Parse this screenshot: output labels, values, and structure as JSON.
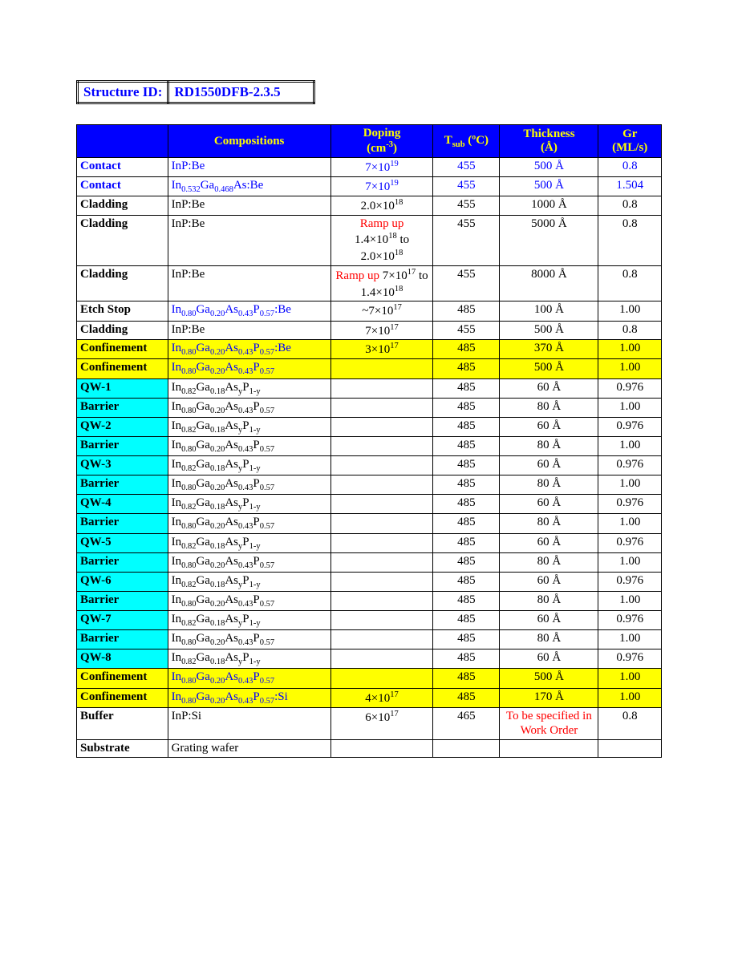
{
  "structure_id_label": "Structure ID:",
  "structure_id_value": "RD1550DFB-2.3.5",
  "headers": {
    "layer": "",
    "compositions_label": "Compositions",
    "doping_label": "Doping",
    "doping_unit": "(cm",
    "doping_unit_sup": "-3",
    "doping_unit_close": ")",
    "tsub_label": "T",
    "tsub_sub": "sub",
    "tsub_unit": " (ºC)",
    "thickness_label": "Thickness",
    "thickness_unit": "(Å)",
    "gr_label": "Gr",
    "gr_unit": "(ML/s)"
  },
  "rows": [
    {
      "layer": "Contact",
      "layer_blue": true,
      "comp": "InP:Be",
      "comp_blue": true,
      "doping_html": "7×10<sup>19</sup>",
      "doping_blue": true,
      "tsub": "455",
      "tsub_blue": true,
      "thick": "500 Å",
      "thick_blue": true,
      "gr": "0.8",
      "gr_blue": true
    },
    {
      "layer": "Contact",
      "layer_blue": true,
      "comp": "In<sub>0.532</sub>Ga<sub>0.468</sub>As:Be",
      "comp_blue": true,
      "doping_html": "7×10<sup>19</sup>",
      "doping_blue": true,
      "tsub": "455",
      "tsub_blue": true,
      "thick": "500 Å",
      "thick_blue": true,
      "gr": "1.504",
      "gr_blue": true
    },
    {
      "layer": "Cladding",
      "comp": "InP:Be",
      "doping_html": "2.0×10<sup>18</sup>",
      "tsub": "455",
      "thick": "1000 Å",
      "gr": "0.8"
    },
    {
      "layer": "Cladding",
      "comp": "InP:Be",
      "doping_html": "<span class=\"red-text\">Ramp up</span><br>1.4×10<sup>18</sup> to 2.0×10<sup>18</sup>",
      "tsub": "455",
      "thick": "5000 Å",
      "gr": "0.8"
    },
    {
      "layer": "Cladding",
      "comp": "InP:Be",
      "doping_html": "<span class=\"red-text\">Ramp up</span> 7×10<sup>17</sup> to 1.4×10<sup>18</sup>",
      "tsub": "455",
      "thick": "8000 Å",
      "gr": "0.8"
    },
    {
      "layer": "Etch Stop",
      "comp": "In<sub>0.80</sub>Ga<sub>0.20</sub>As<sub>0.43</sub>P<sub>0.57</sub>:Be",
      "comp_blue": true,
      "doping_html": "~7×10<sup>17</sup>",
      "tsub": "485",
      "thick": "100 Å",
      "gr": "1.00"
    },
    {
      "layer": "Cladding",
      "comp": "InP:Be",
      "doping_html": "7×10<sup>17</sup>",
      "tsub": "455",
      "thick": "500 Å",
      "gr": "0.8"
    },
    {
      "layer": "Confinement",
      "hl": "yellow",
      "comp": "In<sub>0.80</sub>Ga<sub>0.20</sub>As<sub>0.43</sub>P<sub>0.57</sub>:Be",
      "comp_blue": true,
      "doping_html": "3×10<sup>17</sup>",
      "tsub": "485",
      "thick": "370 Å",
      "gr": "1.00"
    },
    {
      "layer": "Confinement",
      "hl": "yellow",
      "comp": "In<sub>0.80</sub>Ga<sub>0.20</sub>As<sub>0.43</sub>P<sub>0.57</sub>",
      "comp_blue": true,
      "doping_html": "",
      "tsub": "485",
      "thick": "500 Å",
      "gr": "1.00"
    },
    {
      "layer": "QW-1",
      "layer_hl": "cyan",
      "comp": "In<sub>0.82</sub>Ga<sub>0.18</sub>As<sub>y</sub>P<sub>1-y</sub>",
      "doping_html": "",
      "tsub": "485",
      "thick": "60 Å",
      "gr": "0.976"
    },
    {
      "layer": "Barrier",
      "layer_hl": "cyan",
      "comp": "In<sub>0.80</sub>Ga<sub>0.20</sub>As<sub>0.43</sub>P<sub>0.57</sub>",
      "doping_html": "",
      "tsub": "485",
      "thick": "80 Å",
      "gr": "1.00"
    },
    {
      "layer": "QW-2",
      "layer_hl": "cyan",
      "comp": "In<sub>0.82</sub>Ga<sub>0.18</sub>As<sub>y</sub>P<sub>1-y</sub>",
      "doping_html": "",
      "tsub": "485",
      "thick": "60 Å",
      "gr": "0.976"
    },
    {
      "layer": "Barrier",
      "layer_hl": "cyan",
      "comp": "In<sub>0.80</sub>Ga<sub>0.20</sub>As<sub>0.43</sub>P<sub>0.57</sub>",
      "doping_html": "",
      "tsub": "485",
      "thick": "80 Å",
      "gr": "1.00"
    },
    {
      "layer": "QW-3",
      "layer_hl": "cyan",
      "comp": "In<sub>0.82</sub>Ga<sub>0.18</sub>As<sub>y</sub>P<sub>1-y</sub>",
      "doping_html": "",
      "tsub": "485",
      "thick": "60 Å",
      "gr": "0.976"
    },
    {
      "layer": "Barrier",
      "layer_hl": "cyan",
      "comp": "In<sub>0.80</sub>Ga<sub>0.20</sub>As<sub>0.43</sub>P<sub>0.57</sub>",
      "doping_html": "",
      "tsub": "485",
      "thick": "80 Å",
      "gr": "1.00"
    },
    {
      "layer": "QW-4",
      "layer_hl": "cyan",
      "comp": "In<sub>0.82</sub>Ga<sub>0.18</sub>As<sub>y</sub>P<sub>1-y</sub>",
      "doping_html": "",
      "tsub": "485",
      "thick": "60 Å",
      "gr": "0.976"
    },
    {
      "layer": "Barrier",
      "layer_hl": "cyan",
      "comp": "In<sub>0.80</sub>Ga<sub>0.20</sub>As<sub>0.43</sub>P<sub>0.57</sub>",
      "doping_html": "",
      "tsub": "485",
      "thick": "80 Å",
      "gr": "1.00"
    },
    {
      "layer": "QW-5",
      "layer_hl": "cyan",
      "comp": "In<sub>0.82</sub>Ga<sub>0.18</sub>As<sub>y</sub>P<sub>1-y</sub>",
      "doping_html": "",
      "tsub": "485",
      "thick": "60 Å",
      "gr": "0.976"
    },
    {
      "layer": "Barrier",
      "layer_hl": "cyan",
      "comp": "In<sub>0.80</sub>Ga<sub>0.20</sub>As<sub>0.43</sub>P<sub>0.57</sub>",
      "doping_html": "",
      "tsub": "485",
      "thick": "80 Å",
      "gr": "1.00"
    },
    {
      "layer": "QW-6",
      "layer_hl": "cyan",
      "comp": "In<sub>0.82</sub>Ga<sub>0.18</sub>As<sub>y</sub>P<sub>1-y</sub>",
      "doping_html": "",
      "tsub": "485",
      "thick": "60 Å",
      "gr": "0.976"
    },
    {
      "layer": "Barrier",
      "layer_hl": "cyan",
      "comp": "In<sub>0.80</sub>Ga<sub>0.20</sub>As<sub>0.43</sub>P<sub>0.57</sub>",
      "doping_html": "",
      "tsub": "485",
      "thick": "80 Å",
      "gr": "1.00"
    },
    {
      "layer": "QW-7",
      "layer_hl": "cyan",
      "comp": "In<sub>0.82</sub>Ga<sub>0.18</sub>As<sub>y</sub>P<sub>1-y</sub>",
      "doping_html": "",
      "tsub": "485",
      "thick": "60 Å",
      "gr": "0.976"
    },
    {
      "layer": "Barrier",
      "layer_hl": "cyan",
      "comp": "In<sub>0.80</sub>Ga<sub>0.20</sub>As<sub>0.43</sub>P<sub>0.57</sub>",
      "doping_html": "",
      "tsub": "485",
      "thick": "80 Å",
      "gr": "1.00"
    },
    {
      "layer": "QW-8",
      "layer_hl": "cyan",
      "comp": "In<sub>0.82</sub>Ga<sub>0.18</sub>As<sub>y</sub>P<sub>1-y</sub>",
      "doping_html": "",
      "tsub": "485",
      "thick": "60 Å",
      "gr": "0.976"
    },
    {
      "layer": "Confinement",
      "hl": "yellow",
      "comp": "In<sub>0.80</sub>Ga<sub>0.20</sub>As<sub>0.43</sub>P<sub>0.57</sub>",
      "comp_blue": true,
      "doping_html": "",
      "tsub": "485",
      "thick": "500 Å",
      "gr": "1.00"
    },
    {
      "layer": "Confinement",
      "hl": "yellow",
      "comp": "In<sub>0.80</sub>Ga<sub>0.20</sub>As<sub>0.43</sub>P<sub>0.57</sub>:Si",
      "comp_blue": true,
      "doping_html": "4×10<sup>17</sup>",
      "tsub": "485",
      "thick": "170 Å",
      "gr": "1.00"
    },
    {
      "layer": "Buffer",
      "comp": "InP:Si",
      "doping_html": "6×10<sup>17</sup>",
      "tsub": "465",
      "thick": "To be specified in Work Order",
      "thick_red": true,
      "gr": "0.8"
    },
    {
      "layer": "Substrate",
      "comp": "Grating wafer",
      "doping_html": "",
      "tsub": "",
      "thick": "",
      "gr": ""
    }
  ]
}
